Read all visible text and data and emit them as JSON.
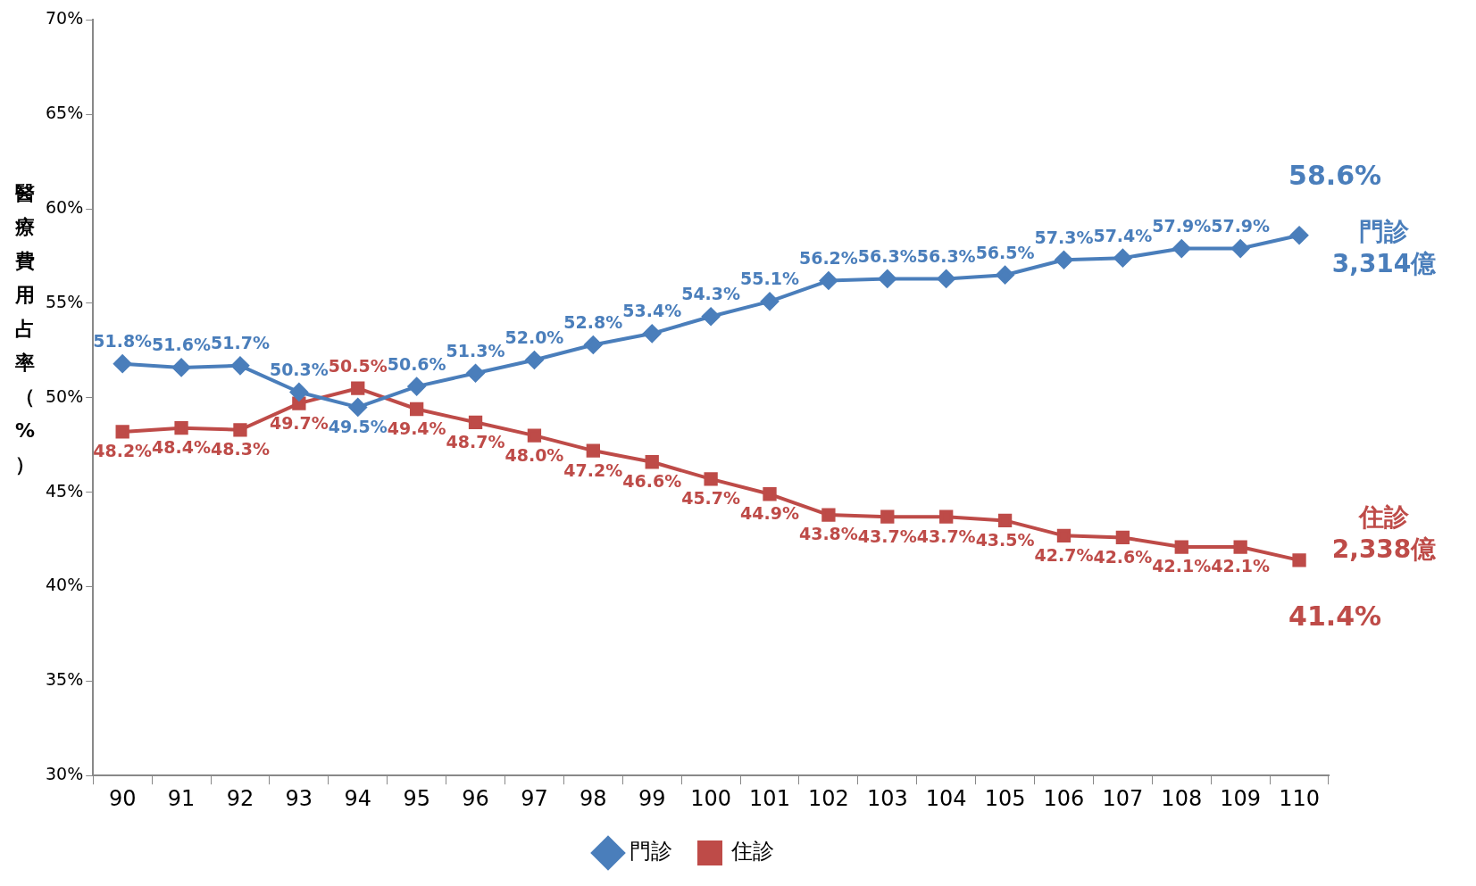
{
  "chart_data": {
    "type": "line",
    "ylabel": "醫療費用占率（%）",
    "categories": [
      "90",
      "91",
      "92",
      "93",
      "94",
      "95",
      "96",
      "97",
      "98",
      "99",
      "100",
      "101",
      "102",
      "103",
      "104",
      "105",
      "106",
      "107",
      "108",
      "109",
      "110"
    ],
    "series": [
      {
        "name": "門診",
        "color": "#4a7ebb",
        "marker": "diamond",
        "values": [
          51.8,
          51.6,
          51.7,
          50.3,
          49.5,
          50.6,
          51.3,
          52.0,
          52.8,
          53.4,
          54.3,
          55.1,
          56.2,
          56.3,
          56.3,
          56.5,
          57.3,
          57.4,
          57.9,
          57.9,
          58.6
        ],
        "value_labels": [
          "51.8%",
          "51.6%",
          "51.7%",
          "50.3%",
          "49.5%",
          "50.6%",
          "51.3%",
          "52.0%",
          "52.8%",
          "53.4%",
          "54.3%",
          "55.1%",
          "56.2%",
          "56.3%",
          "56.3%",
          "56.5%",
          "57.3%",
          "57.4%",
          "57.9%",
          "57.9%",
          "58.6%"
        ]
      },
      {
        "name": "住診",
        "color": "#be4b48",
        "marker": "square",
        "values": [
          48.2,
          48.4,
          48.3,
          49.7,
          50.5,
          49.4,
          48.7,
          48.0,
          47.2,
          46.6,
          45.7,
          44.9,
          43.8,
          43.7,
          43.7,
          43.5,
          42.7,
          42.6,
          42.1,
          42.1,
          41.4
        ],
        "value_labels": [
          "48.2%",
          "48.4%",
          "48.3%",
          "49.7%",
          "50.5%",
          "49.4%",
          "48.7%",
          "48.0%",
          "47.2%",
          "46.6%",
          "45.7%",
          "44.9%",
          "43.8%",
          "43.7%",
          "43.7%",
          "43.5%",
          "42.7%",
          "42.6%",
          "42.1%",
          "42.1%",
          "41.4%"
        ]
      }
    ],
    "annotations": [
      {
        "text": "門診\n3,314億",
        "x": "110",
        "y": 58.6
      },
      {
        "text": "住診\n2,338億",
        "x": "110",
        "y": 41.4
      }
    ],
    "ylim": [
      30,
      70
    ],
    "yticks": [
      {
        "value": 30,
        "label": "30%"
      },
      {
        "value": 35,
        "label": "35%"
      },
      {
        "value": 40,
        "label": "40%"
      },
      {
        "value": 45,
        "label": "45%"
      },
      {
        "value": 50,
        "label": "50%"
      },
      {
        "value": 55,
        "label": "55%"
      },
      {
        "value": 60,
        "label": "60%"
      },
      {
        "value": 65,
        "label": "65%"
      },
      {
        "value": 70,
        "label": "70%"
      }
    ],
    "grid": false,
    "legend": "bottom",
    "line_style": "solid"
  }
}
